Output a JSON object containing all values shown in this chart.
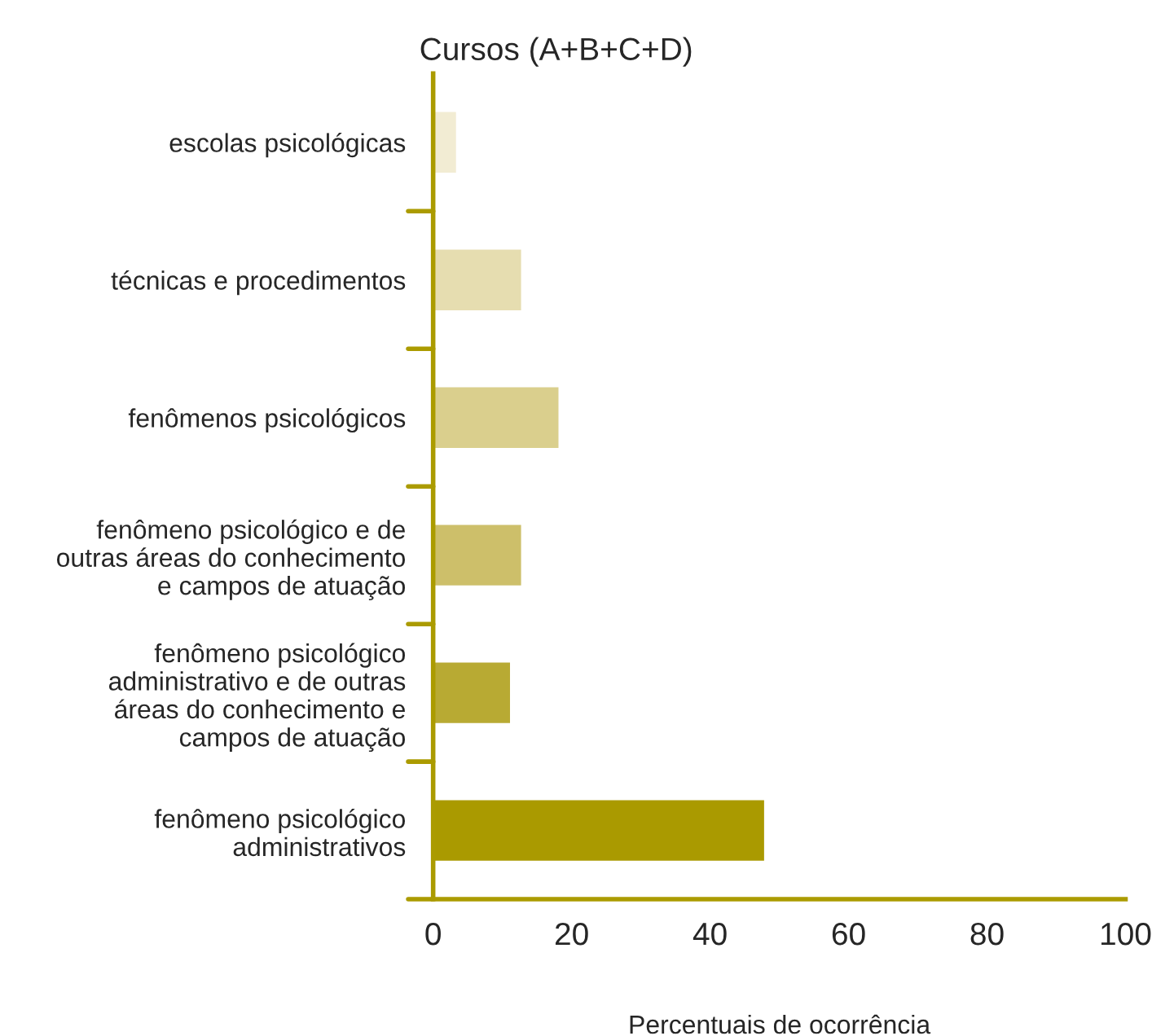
{
  "chart_data": {
    "type": "bar",
    "orientation": "horizontal",
    "title": "Cursos (A+B+C+D)",
    "xlabel": "Percentuais de ocorrência",
    "categories": [
      "escolas psicológicas",
      "técnicas e procedimentos",
      "fenômenos psicológicos",
      "fenômeno psicológico e de\noutras áreas do conhecimento\ne campos de atuação",
      "fenômeno psicológico\nadministrativo e de outras\náreas do conhecimento e\ncampos de atuação",
      "fenômeno psicológico\nadministrativos"
    ],
    "values": [
      3.3,
      12.7,
      18.1,
      12.7,
      11.1,
      47.8
    ],
    "colors": [
      "#f2ecd3",
      "#e6ddb0",
      "#dacf8d",
      "#cdbf6a",
      "#b8aa33",
      "#aa9a00"
    ],
    "xlim": [
      0,
      100
    ],
    "xticks": [
      0,
      20,
      40,
      60,
      80,
      100
    ],
    "grid": false,
    "legend": false
  }
}
